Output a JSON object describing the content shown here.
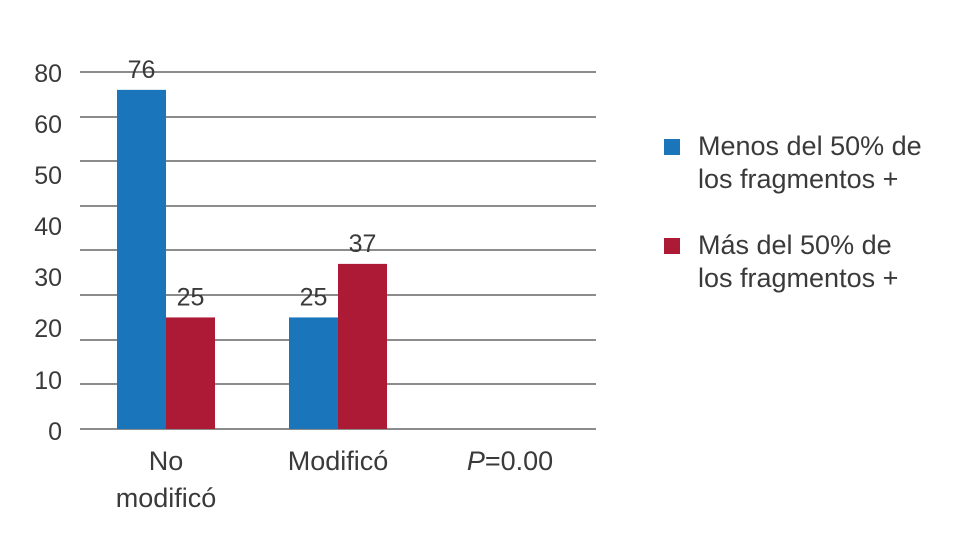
{
  "chart_data": {
    "type": "bar",
    "categories": [
      "No modificó",
      "Modificó",
      ""
    ],
    "category_lines": [
      [
        "No",
        "modificó"
      ],
      [
        "Modificó"
      ],
      []
    ],
    "series": [
      {
        "name": "Menos del 50% de los fragmentos +",
        "name_lines": [
          "Menos del 50% de",
          "los fragmentos +"
        ],
        "color": "#1a75bb",
        "values": [
          76,
          25,
          null
        ]
      },
      {
        "name": "Más del 50% de los fragmentos +",
        "name_lines": [
          "Más del 50% de",
          "los fragmentos +"
        ],
        "color": "#ac1a36",
        "values": [
          25,
          37,
          null
        ]
      }
    ],
    "y_tick_labels": [
      "0",
      "10",
      "20",
      "30",
      "40",
      "50",
      "60",
      "80"
    ],
    "ylim": [
      0,
      80
    ],
    "annotation": {
      "prefix": "P",
      "suffix": "=0.00"
    },
    "grid": true,
    "legend_position": "right",
    "title": "",
    "xlabel": "",
    "ylabel": ""
  }
}
